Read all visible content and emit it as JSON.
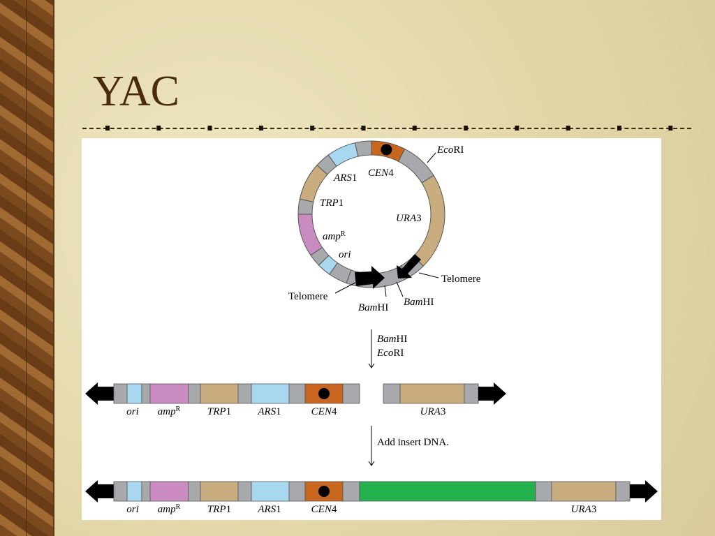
{
  "header": {
    "title": "YAC"
  },
  "circular": {
    "eco_ri": [
      "Eco",
      "RI"
    ],
    "ars": [
      "ARS",
      "1"
    ],
    "cen": [
      "CEN",
      "4"
    ],
    "trp": [
      "TRP",
      "1"
    ],
    "ura": [
      "URA",
      "3"
    ],
    "amp": [
      "amp",
      "R"
    ],
    "ori": [
      "ori"
    ],
    "telomere_right": "Telomere",
    "telomere_left": "Telomere",
    "bam_left": [
      "Bam",
      "HI"
    ],
    "bam_right": [
      "Bam",
      "HI"
    ]
  },
  "step1": {
    "lines": [
      [
        "Bam",
        "HI"
      ],
      [
        "Eco",
        "RI"
      ]
    ]
  },
  "linear1": {
    "labels": [
      [
        "ori"
      ],
      [
        "amp",
        "R"
      ],
      [
        "TRP",
        "1"
      ],
      [
        "ARS",
        "1"
      ],
      [
        "CEN",
        "4"
      ],
      [
        "URA",
        "3"
      ]
    ]
  },
  "step2": {
    "text": "Add insert DNA."
  },
  "linear2": {
    "labels": [
      [
        "ori"
      ],
      [
        "amp",
        "R"
      ],
      [
        "TRP",
        "1"
      ],
      [
        "ARS",
        "1"
      ],
      [
        "CEN",
        "4"
      ],
      [
        "URA",
        "3"
      ]
    ]
  }
}
